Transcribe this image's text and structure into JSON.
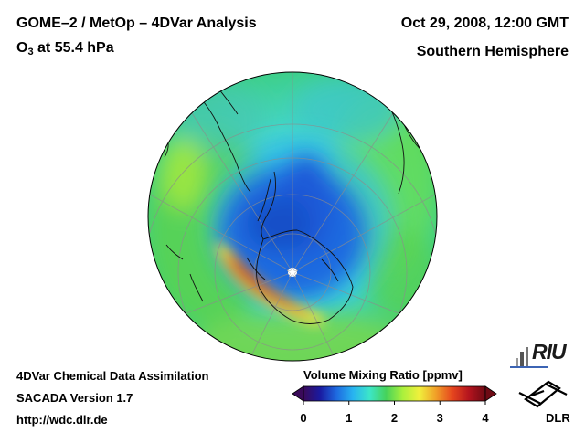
{
  "header": {
    "title_line1": "GOME–2 / MetOp – 4DVar Analysis",
    "title_line2_prefix": "O",
    "title_line2_sub": "3",
    "title_line2_suffix": " at 55.4 hPa",
    "date": "Oct 29, 2008, 12:00 GMT",
    "region": "Southern Hemisphere"
  },
  "footer": {
    "line1": "4DVar Chemical Data Assimilation",
    "line2": "SACADA Version 1.7",
    "line3": "http://wdc.dlr.de"
  },
  "colorbar": {
    "title": "Volume Mixing Ratio [ppmv]",
    "min": 0,
    "max": 4,
    "ticks": [
      "0",
      "1",
      "2",
      "3",
      "4"
    ],
    "colors": [
      "#3a0a5a",
      "#1a1aa0",
      "#1e6ae0",
      "#28b4f0",
      "#3ce6c8",
      "#46d25a",
      "#aaf03c",
      "#f0f03c",
      "#f0a028",
      "#e6461e",
      "#b4141e",
      "#6e0a14"
    ]
  },
  "logos": {
    "riu": "RIU",
    "dlr": "DLR"
  },
  "icons": [
    "riu-logo-icon",
    "dlr-logo-icon",
    "south-pole-star-icon"
  ]
}
